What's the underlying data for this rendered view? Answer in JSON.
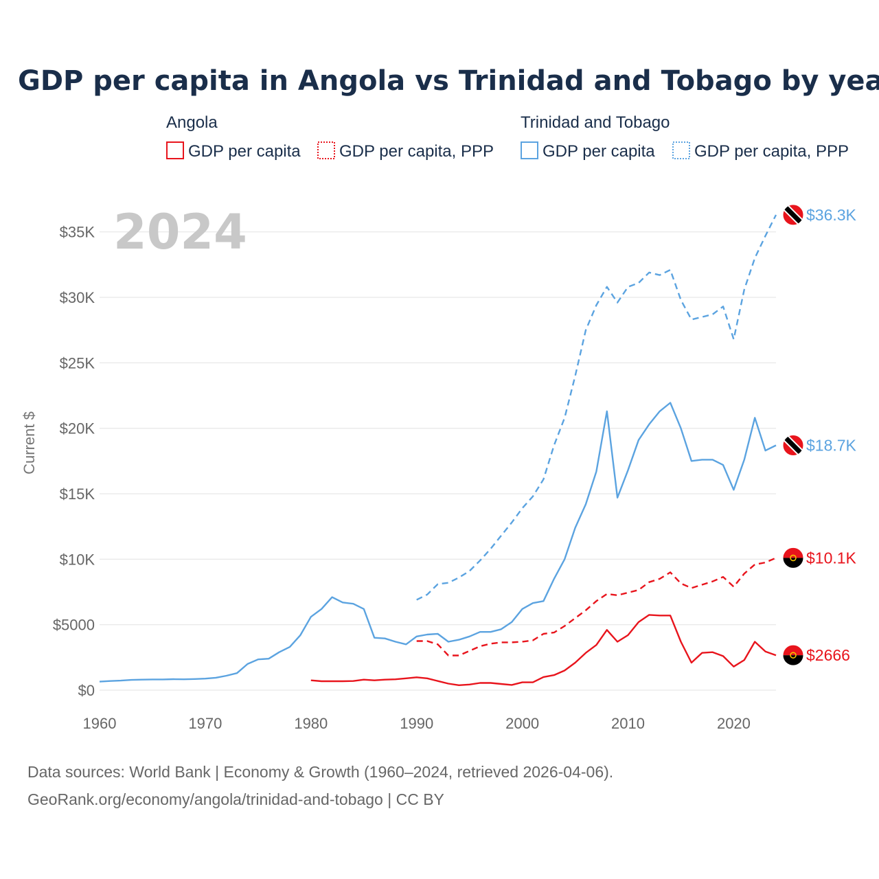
{
  "title": "GDP per capita in Angola vs Trinidad and Tobago by year",
  "year_display": "2024",
  "legend": {
    "groups": [
      {
        "name": "Angola",
        "color": "#e8141c",
        "items": [
          "GDP per capita",
          "GDP per capita, PPP"
        ]
      },
      {
        "name": "Trinidad and Tobago",
        "color": "#5ba3e0",
        "items": [
          "GDP per capita",
          "GDP per capita, PPP"
        ]
      }
    ]
  },
  "footer": {
    "line1": "Data sources: World Bank | Economy & Growth (1960–2024, retrieved 2026-04-06).",
    "line2": "GeoRank.org/economy/angola/trinidad-and-tobago | CC BY"
  },
  "chart_data": {
    "type": "line",
    "title": "GDP per capita in Angola vs Trinidad and Tobago by year",
    "xlabel": "",
    "ylabel": "Current $",
    "xlim": [
      1960,
      2024
    ],
    "ylim": [
      0,
      37000
    ],
    "x_ticks": [
      1960,
      1970,
      1980,
      1990,
      2000,
      2010,
      2020
    ],
    "y_ticks": [
      {
        "value": 0,
        "label": "$0"
      },
      {
        "value": 5000,
        "label": "$5000"
      },
      {
        "value": 10000,
        "label": "$10K"
      },
      {
        "value": 15000,
        "label": "$15K"
      },
      {
        "value": 20000,
        "label": "$20K"
      },
      {
        "value": 25000,
        "label": "$25K"
      },
      {
        "value": 30000,
        "label": "$30K"
      },
      {
        "value": 35000,
        "label": "$35K"
      }
    ],
    "grid": true,
    "series": [
      {
        "name": "Trinidad and Tobago GDP per capita, PPP",
        "country": "Trinidad and Tobago",
        "color": "#5ba3e0",
        "dash": true,
        "end_label": "$36.3K",
        "start_year": 1990,
        "values": [
          6900,
          7300,
          8100,
          8200,
          8600,
          9100,
          9900,
          10800,
          11800,
          12800,
          13900,
          14800,
          16100,
          18700,
          20800,
          24000,
          27500,
          29400,
          30800,
          29600,
          30800,
          31100,
          31900,
          31700,
          32100,
          29800,
          28300,
          28500,
          28700,
          29300,
          26800,
          30600,
          33000,
          34700,
          36300
        ]
      },
      {
        "name": "Trinidad and Tobago GDP per capita",
        "country": "Trinidad and Tobago",
        "color": "#5ba3e0",
        "dash": false,
        "end_label": "$18.7K",
        "start_year": 1960,
        "values": [
          650,
          700,
          730,
          780,
          800,
          820,
          820,
          840,
          830,
          850,
          880,
          950,
          1100,
          1300,
          2000,
          2350,
          2400,
          2900,
          3300,
          4200,
          5600,
          6200,
          7100,
          6700,
          6600,
          6200,
          4000,
          3950,
          3700,
          3500,
          4100,
          4250,
          4300,
          3700,
          3850,
          4100,
          4450,
          4450,
          4650,
          5200,
          6200,
          6650,
          6800,
          8500,
          10000,
          12400,
          14200,
          16700,
          21300,
          14700,
          16800,
          19100,
          20300,
          21300,
          21950,
          20000,
          17500,
          17600,
          17600,
          17200,
          15300,
          17600,
          20800,
          18300,
          18700
        ]
      },
      {
        "name": "Angola GDP per capita, PPP",
        "country": "Angola",
        "color": "#e8141c",
        "dash": true,
        "end_label": "$10.1K",
        "start_year": 1990,
        "values": [
          3750,
          3750,
          3500,
          2650,
          2650,
          3000,
          3350,
          3550,
          3650,
          3650,
          3700,
          3800,
          4300,
          4400,
          4900,
          5500,
          6100,
          6800,
          7350,
          7250,
          7450,
          7650,
          8250,
          8500,
          9000,
          8150,
          7800,
          8050,
          8300,
          8650,
          7900,
          8900,
          9600,
          9750,
          10100
        ]
      },
      {
        "name": "Angola GDP per capita",
        "country": "Angola",
        "color": "#e8141c",
        "dash": false,
        "end_label": "$2666",
        "start_year": 1980,
        "values": [
          750,
          680,
          680,
          680,
          700,
          800,
          750,
          800,
          830,
          900,
          980,
          900,
          700,
          500,
          380,
          430,
          550,
          550,
          470,
          400,
          600,
          600,
          1000,
          1150,
          1500,
          2100,
          2850,
          3450,
          4600,
          3700,
          4200,
          5200,
          5750,
          5700,
          5700,
          3700,
          2100,
          2850,
          2900,
          2600,
          1800,
          2300,
          3700,
          2950,
          2666
        ]
      }
    ]
  }
}
